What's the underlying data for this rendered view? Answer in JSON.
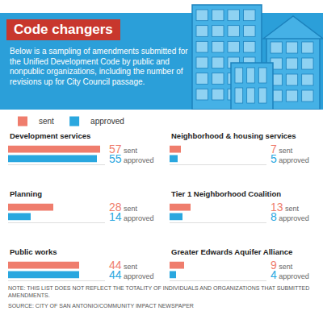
{
  "header": {
    "title": "Code changers",
    "description": "Below is a sampling of amendments submitted for the Unified Development Code by public and nonpublic organizations, including the number of revisions up for City Council passage."
  },
  "chart_data": [
    {
      "type": "bar",
      "title": "Development services",
      "orientation": "horizontal",
      "categories": [
        null
      ],
      "series": [
        {
          "name": "sent",
          "color": "#ef7d6d",
          "values": [
            57
          ],
          "value_labels": [
            "57 sent"
          ]
        },
        {
          "name": "approved",
          "color": "#2aa7df",
          "values": [
            55
          ],
          "value_labels": [
            "55 approved"
          ]
        }
      ],
      "xlim": [
        0,
        60
      ],
      "tick_labels": false,
      "data_labels": true,
      "grid": false,
      "legend": "top left"
    },
    {
      "type": "bar",
      "title": "Neighborhood & housing services",
      "orientation": "horizontal",
      "categories": [
        null
      ],
      "series": [
        {
          "name": "sent",
          "color": "#ef7d6d",
          "values": [
            7
          ],
          "value_labels": [
            "7 sent"
          ]
        },
        {
          "name": "approved",
          "color": "#2aa7df",
          "values": [
            5
          ],
          "value_labels": [
            "5 approved"
          ]
        }
      ],
      "xlim": [
        0,
        60
      ],
      "tick_labels": false,
      "data_labels": true,
      "grid": false
    },
    {
      "type": "bar",
      "title": "Planning",
      "orientation": "horizontal",
      "categories": [
        null
      ],
      "series": [
        {
          "name": "sent",
          "color": "#ef7d6d",
          "values": [
            28
          ],
          "value_labels": [
            "28 sent"
          ]
        },
        {
          "name": "approved",
          "color": "#2aa7df",
          "values": [
            14
          ],
          "value_labels": [
            "14 approved"
          ]
        }
      ],
      "xlim": [
        0,
        60
      ],
      "tick_labels": false,
      "data_labels": true,
      "grid": false
    },
    {
      "type": "bar",
      "title": "Tier 1 Neighborhood Coalition",
      "orientation": "horizontal",
      "categories": [
        null
      ],
      "series": [
        {
          "name": "sent",
          "color": "#ef7d6d",
          "values": [
            13
          ],
          "value_labels": [
            "13 sent"
          ]
        },
        {
          "name": "approved",
          "color": "#2aa7df",
          "values": [
            8
          ],
          "value_labels": [
            "8 approved"
          ]
        }
      ],
      "xlim": [
        0,
        60
      ],
      "tick_labels": false,
      "data_labels": true,
      "grid": false
    },
    {
      "type": "bar",
      "title": "Public works",
      "orientation": "horizontal",
      "categories": [
        null
      ],
      "series": [
        {
          "name": "sent",
          "color": "#ef7d6d",
          "values": [
            44
          ],
          "value_labels": [
            "44 sent"
          ]
        },
        {
          "name": "approved",
          "color": "#2aa7df",
          "values": [
            44
          ],
          "value_labels": [
            "44 approved"
          ]
        }
      ],
      "xlim": [
        0,
        60
      ],
      "tick_labels": false,
      "data_labels": true,
      "grid": false
    },
    {
      "type": "bar",
      "title": "Greater Edwards Aquifer Alliance",
      "orientation": "horizontal",
      "categories": [
        null
      ],
      "series": [
        {
          "name": "sent",
          "color": "#ef7d6d",
          "values": [
            9
          ],
          "value_labels": [
            "9 sent"
          ]
        },
        {
          "name": "approved",
          "color": "#2aa7df",
          "values": [
            4
          ],
          "value_labels": [
            "4 approved"
          ]
        }
      ],
      "xlim": [
        0,
        60
      ],
      "tick_labels": false,
      "data_labels": true,
      "grid": false
    }
  ],
  "note": "NOTE: THIS LIST DOES NOT REFLECT THE TOTALITY OF INDIVIDUALS AND ORGANIZATIONS THAT SUBMITTED AMENDMENTS.",
  "source": "SOURCE: CITY OF SAN ANTONIO/COMMUNITY IMPACT NEWSPAPER"
}
